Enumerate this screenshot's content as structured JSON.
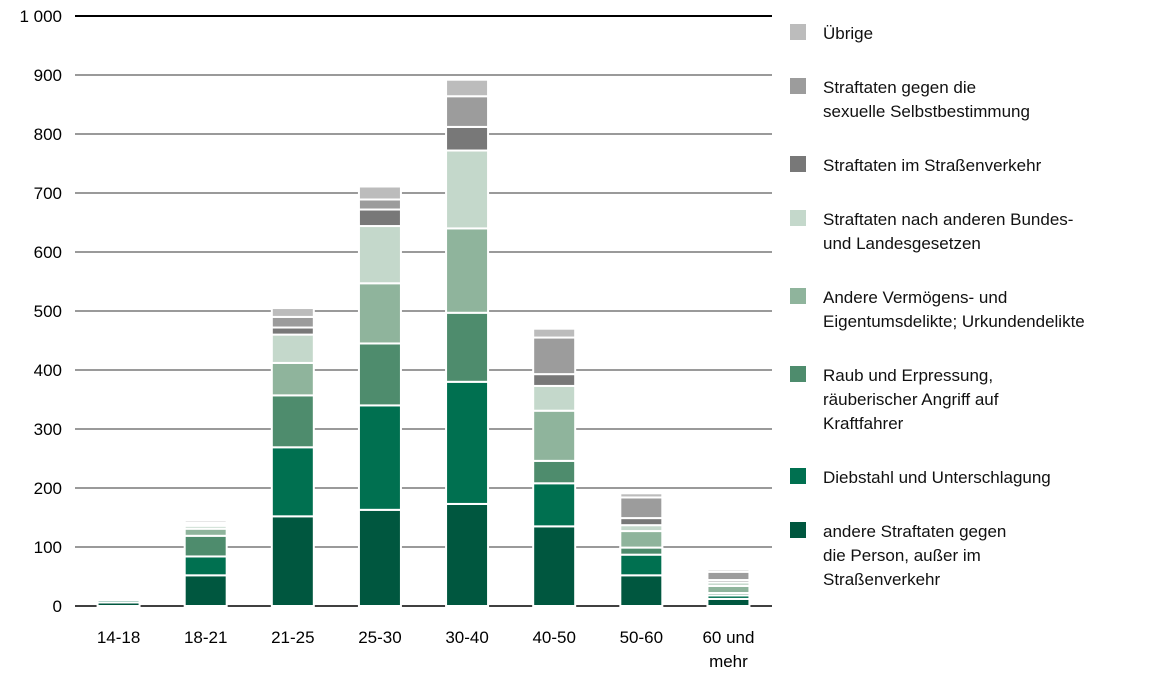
{
  "chart_data": {
    "type": "bar",
    "stacked": true,
    "categories": [
      "14-18",
      "18-21",
      "21-25",
      "25-30",
      "30-40",
      "40-50",
      "50-60",
      "60 und mehr"
    ],
    "ylim": [
      0,
      1000
    ],
    "yticks": [
      0,
      100,
      200,
      300,
      400,
      500,
      600,
      700,
      800,
      900,
      1000
    ],
    "ytick_labels": [
      "0",
      "100",
      "200",
      "300",
      "400",
      "500",
      "600",
      "700",
      "800",
      "900",
      "1 000"
    ],
    "grid": true,
    "legend_position": "right",
    "series": [
      {
        "name": "andere Straftaten gegen die Person, außer im Straßenverkehr",
        "color": "#00573f",
        "values": [
          6,
          52,
          152,
          163,
          173,
          135,
          52,
          12
        ]
      },
      {
        "name": "Diebstahl und Unterschlagung",
        "color": "#007050",
        "values": [
          4,
          32,
          117,
          177,
          207,
          73,
          35,
          6
        ]
      },
      {
        "name": "Raub und Erpressung, räuberischer Angriff auf Kraftfahrer",
        "color": "#4e8c6d",
        "values": [
          2,
          35,
          88,
          105,
          117,
          38,
          12,
          4
        ]
      },
      {
        "name": "Andere Vermögens- und Eigentumsdelikte; Urkundendelikte",
        "color": "#8fb49c",
        "values": [
          2,
          12,
          55,
          102,
          143,
          85,
          28,
          12
        ]
      },
      {
        "name": "Straftaten nach anderen Bundes- und Landesgesetzen",
        "color": "#c4d8cb",
        "values": [
          2,
          5,
          48,
          97,
          132,
          42,
          10,
          6
        ]
      },
      {
        "name": "Straftaten im Straßenverkehr",
        "color": "#787878",
        "values": [
          1,
          2,
          12,
          28,
          40,
          20,
          12,
          4
        ]
      },
      {
        "name": "Straftaten gegen die sexuelle Selbstbestimmung",
        "color": "#9c9c9c",
        "values": [
          1,
          3,
          18,
          17,
          52,
          62,
          35,
          14
        ]
      },
      {
        "name": "Übrige",
        "color": "#bcbcbc",
        "values": [
          2,
          4,
          15,
          22,
          28,
          15,
          7,
          4
        ]
      }
    ],
    "legend": [
      {
        "color": "#bcbcbc",
        "lines": [
          "Übrige"
        ]
      },
      {
        "color": "#9c9c9c",
        "lines": [
          "Straftaten gegen die",
          "sexuelle Selbstbestimmung"
        ]
      },
      {
        "color": "#787878",
        "lines": [
          "Straftaten im Straßenverkehr"
        ]
      },
      {
        "color": "#c4d8cb",
        "lines": [
          "Straftaten nach anderen Bundes-",
          "und Landesgesetzen"
        ]
      },
      {
        "color": "#8fb49c",
        "lines": [
          "Andere Vermögens- und",
          "Eigentumsdelikte; Urkundendelikte"
        ]
      },
      {
        "color": "#4e8c6d",
        "lines": [
          "Raub und Erpressung,",
          "räuberischer Angriff auf",
          "Kraftfahrer"
        ]
      },
      {
        "color": "#007050",
        "lines": [
          "Diebstahl und Unterschlagung"
        ]
      },
      {
        "color": "#00573f",
        "lines": [
          "andere Straftaten gegen",
          "die Person, außer im",
          "Straßenverkehr"
        ]
      }
    ],
    "category_label_lines": [
      [
        "14-18"
      ],
      [
        "18-21"
      ],
      [
        "21-25"
      ],
      [
        "25-30"
      ],
      [
        "30-40"
      ],
      [
        "40-50"
      ],
      [
        "50-60"
      ],
      [
        "60 und",
        "mehr"
      ]
    ]
  }
}
